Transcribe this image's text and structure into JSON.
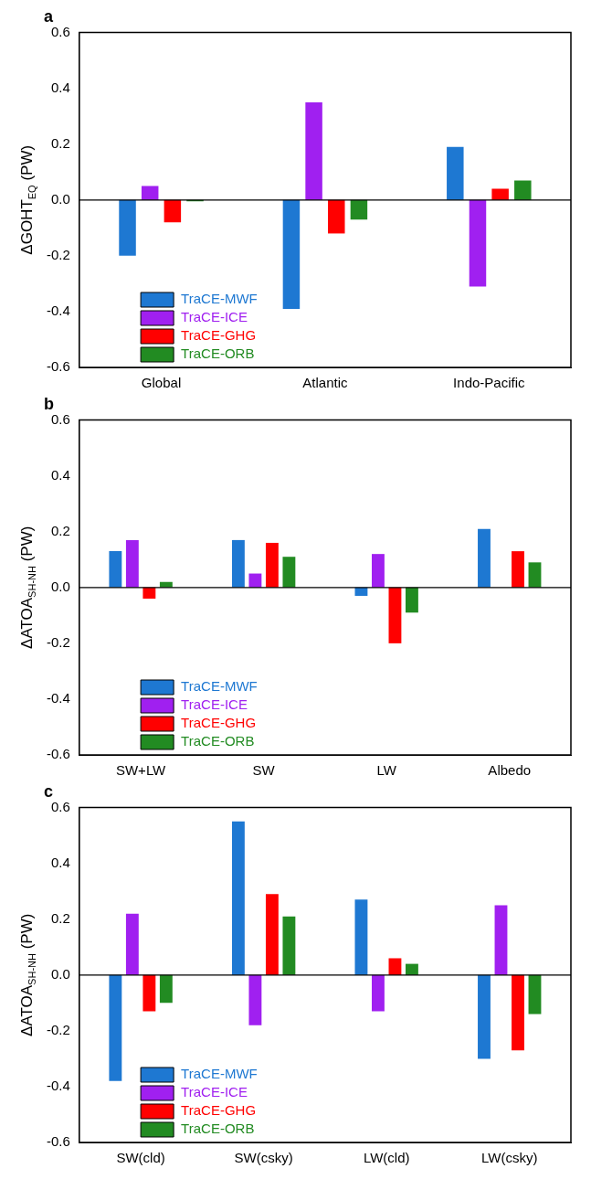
{
  "chart_data": [
    {
      "type": "bar",
      "title": "a",
      "ylabel": "ΔGOHT$_{EQ}$ (PW)",
      "categories": [
        "Global",
        "Atlantic",
        "Indo-Pacific"
      ],
      "series": [
        {
          "name": "TraCE-MWF",
          "color": "#1e78d2",
          "values": [
            -0.2,
            -0.39,
            0.19
          ]
        },
        {
          "name": "TraCE-ICE",
          "color": "#a020f0",
          "values": [
            0.05,
            0.35,
            -0.31
          ]
        },
        {
          "name": "TraCE-GHG",
          "color": "#ff0000",
          "values": [
            -0.08,
            -0.12,
            0.04
          ]
        },
        {
          "name": "TraCE-ORB",
          "color": "#228b22",
          "values": [
            -0.005,
            -0.07,
            0.07
          ]
        }
      ],
      "ylim": [
        -0.6,
        0.6
      ],
      "yticks": [
        {
          "value": -0.6,
          "label": "-0.6"
        },
        {
          "value": -0.4,
          "label": "-0.4"
        },
        {
          "value": -0.2,
          "label": "-0.2"
        },
        {
          "value": 0,
          "label": "0.0"
        },
        {
          "value": 0.2,
          "label": "0.2"
        },
        {
          "value": 0.4,
          "label": "0.4"
        },
        {
          "value": 0.6,
          "label": "0.6"
        }
      ],
      "ref_lines": [
        {
          "axis": "y",
          "value": 0
        }
      ],
      "grid": false,
      "legend": "bottom left"
    },
    {
      "type": "bar",
      "title": "b",
      "ylabel": "ΔATOA$_{SH-NH}$ (PW)",
      "categories": [
        "SW+LW",
        "SW",
        "LW",
        "Albedo"
      ],
      "series": [
        {
          "name": "TraCE-MWF",
          "color": "#1e78d2",
          "values": [
            0.13,
            0.17,
            -0.03,
            0.21
          ]
        },
        {
          "name": "TraCE-ICE",
          "color": "#a020f0",
          "values": [
            0.17,
            0.05,
            0.12,
            0
          ]
        },
        {
          "name": "TraCE-GHG",
          "color": "#ff0000",
          "values": [
            -0.04,
            0.16,
            -0.2,
            0.13
          ]
        },
        {
          "name": "TraCE-ORB",
          "color": "#228b22",
          "values": [
            0.02,
            0.11,
            -0.09,
            0.09
          ]
        }
      ],
      "ylim": [
        -0.6,
        0.6
      ],
      "yticks": [
        {
          "value": -0.6,
          "label": "-0.6"
        },
        {
          "value": -0.4,
          "label": "-0.4"
        },
        {
          "value": -0.2,
          "label": "-0.2"
        },
        {
          "value": 0,
          "label": "0.0"
        },
        {
          "value": 0.2,
          "label": "0.2"
        },
        {
          "value": 0.4,
          "label": "0.4"
        },
        {
          "value": 0.6,
          "label": "0.6"
        }
      ],
      "ref_lines": [
        {
          "axis": "y",
          "value": 0
        }
      ],
      "grid": false,
      "legend": "bottom left"
    },
    {
      "type": "bar",
      "title": "c",
      "ylabel": "ΔATOA$_{SH-NH}$ (PW)",
      "categories": [
        "SW(cld)",
        "SW(csky)",
        "LW(cld)",
        "LW(csky)"
      ],
      "series": [
        {
          "name": "TraCE-MWF",
          "color": "#1e78d2",
          "values": [
            -0.38,
            0.55,
            0.27,
            -0.3
          ]
        },
        {
          "name": "TraCE-ICE",
          "color": "#a020f0",
          "values": [
            0.22,
            -0.18,
            -0.13,
            0.25
          ]
        },
        {
          "name": "TraCE-GHG",
          "color": "#ff0000",
          "values": [
            -0.13,
            0.29,
            0.06,
            -0.27
          ]
        },
        {
          "name": "TraCE-ORB",
          "color": "#228b22",
          "values": [
            -0.1,
            0.21,
            0.04,
            -0.14
          ]
        }
      ],
      "ylim": [
        -0.6,
        0.6
      ],
      "yticks": [
        {
          "value": -0.6,
          "label": "-0.6"
        },
        {
          "value": -0.4,
          "label": "-0.4"
        },
        {
          "value": -0.2,
          "label": "-0.2"
        },
        {
          "value": 0,
          "label": "0.0"
        },
        {
          "value": 0.2,
          "label": "0.2"
        },
        {
          "value": 0.4,
          "label": "0.4"
        },
        {
          "value": 0.6,
          "label": "0.6"
        }
      ],
      "ref_lines": [
        {
          "axis": "y",
          "value": 0
        }
      ],
      "grid": false,
      "legend": "bottom left"
    }
  ]
}
